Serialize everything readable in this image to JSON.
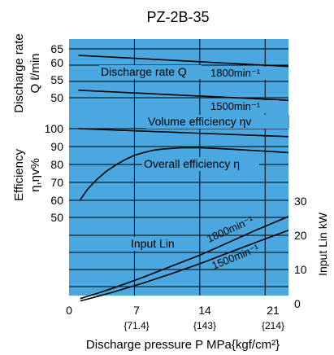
{
  "colors": {
    "plot_bg": "#4aa7df",
    "grid": "#000000",
    "curve": "#000000",
    "label_bg": "#4aa7df"
  },
  "chart_data": {
    "type": "line",
    "title": "PZ-2B-35",
    "xlabel": "Discharge pressure P  MPa{kgf/cm²}",
    "x_ticks": [
      "0",
      "7",
      "14",
      "21"
    ],
    "x_ticks_sub": [
      "{71.4}",
      "{143}",
      "{214}"
    ],
    "xlim": [
      0,
      23.5
    ],
    "grid": true,
    "panels": {
      "discharge": {
        "ylabel_line1": "Discharge rate",
        "ylabel_line2": "Q ℓ/min",
        "ylim": [
          45,
          65
        ],
        "ticks": [
          "65",
          "60",
          "55",
          "50"
        ]
      },
      "efficiency": {
        "ylabel_line1": "Efficiency",
        "ylabel_line2": "η,ηv%",
        "ylim": [
          50,
          100
        ],
        "ticks": [
          "100",
          "90",
          "80",
          "70",
          "60",
          "50"
        ]
      },
      "power": {
        "ylabel": "Input Lin kW",
        "ylim": [
          0,
          30
        ],
        "ticks": [
          "30",
          "20",
          "10",
          "0"
        ]
      }
    },
    "series": [
      {
        "name": "Discharge rate Q 1800min⁻¹",
        "label": "Discharge rate Q",
        "speed_label": "1800min⁻¹",
        "axis": "discharge",
        "x": [
          1,
          23.5
        ],
        "y": [
          63.0,
          59.6
        ]
      },
      {
        "name": "Discharge rate Q 1500min⁻¹",
        "speed_label": "1500min⁻¹",
        "axis": "discharge",
        "x": [
          1,
          23.5
        ],
        "y": [
          52.3,
          49.2
        ]
      },
      {
        "name": "Volume efficiency ηv",
        "label": "Volume efficiency ηv",
        "axis": "efficiency",
        "x": [
          1,
          23.5
        ],
        "y": [
          100,
          95.5
        ]
      },
      {
        "name": "Overall efficiency η",
        "label": "Overall efficiency η",
        "axis": "efficiency",
        "x": [
          1.2,
          2,
          3,
          4,
          5,
          6,
          7,
          8,
          9,
          10,
          12,
          14,
          16,
          18,
          20,
          22,
          23.5
        ],
        "y": [
          60,
          66,
          71.5,
          76,
          79.5,
          82.5,
          85,
          86.5,
          87.8,
          88.5,
          89.2,
          89.2,
          88.8,
          88.2,
          87.6,
          87,
          86.5
        ]
      },
      {
        "name": "Input Lin 1800min⁻¹",
        "label": "Input Lin",
        "speed_label": "1800min⁻¹",
        "axis": "power",
        "x": [
          1.2,
          3,
          5,
          8,
          11,
          14,
          17,
          20,
          23.5
        ],
        "y": [
          1.5,
          3,
          4.8,
          7.8,
          11,
          14.2,
          17.8,
          21.5,
          25.5
        ]
      },
      {
        "name": "Input Lin 1500min⁻¹",
        "speed_label": "1500min⁻¹",
        "axis": "power",
        "x": [
          1.2,
          3,
          5,
          8,
          11,
          14,
          17,
          20,
          23.5
        ],
        "y": [
          0.8,
          2.1,
          3.6,
          6.1,
          8.8,
          11.7,
          14.8,
          17.9,
          21.5
        ]
      }
    ]
  }
}
